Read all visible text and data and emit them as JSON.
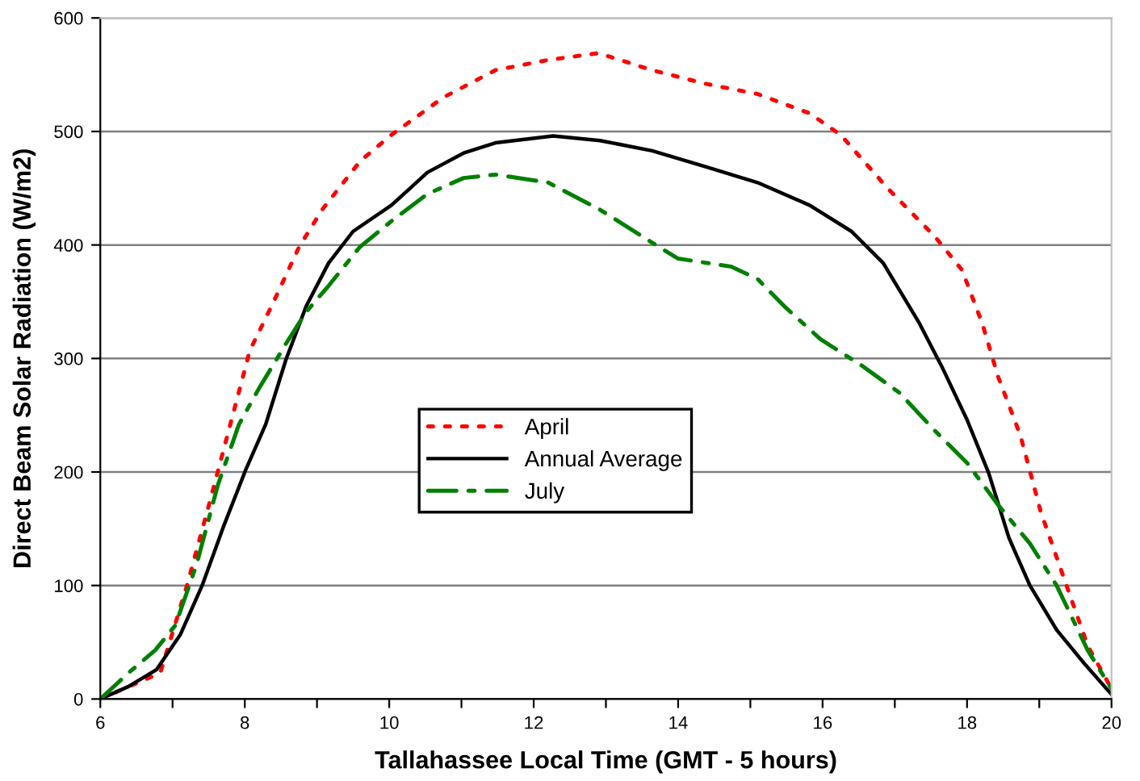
{
  "chart_data": {
    "type": "line",
    "xlabel": "Tallahassee Local Time (GMT - 5 hours)",
    "ylabel": "Direct Beam Solar Radiation (W/m2)",
    "xlim": [
      6,
      20
    ],
    "xticks": [
      6,
      {
        "value": 7,
        "label": null
      },
      8,
      {
        "value": 9,
        "label": null
      },
      10,
      {
        "value": 11,
        "label": null
      },
      12,
      {
        "value": 13,
        "label": null
      },
      14,
      {
        "value": 15,
        "label": null
      },
      16,
      {
        "value": 17,
        "label": null
      },
      18,
      {
        "value": 19,
        "label": null
      },
      20
    ],
    "ylim": [
      0,
      600
    ],
    "yticks": [
      0,
      100,
      200,
      300,
      400,
      500,
      600
    ],
    "grid": "y",
    "legend": "center",
    "marker": "none",
    "series": [
      {
        "name": "April",
        "color": "#ff0000",
        "line_style": "dotted",
        "x": [
          6,
          6.83,
          7.2,
          7.5,
          7.8,
          8.07,
          8.4,
          8.75,
          9.07,
          9.6,
          10.03,
          10.75,
          11.47,
          12.2,
          12.9,
          13.64,
          14.38,
          15.1,
          15.82,
          16.25,
          16.9,
          17.56,
          17.93,
          18.21,
          18.43,
          18.74,
          19.02,
          19.3,
          19.67,
          20
        ],
        "values": [
          0,
          23,
          100,
          170,
          242,
          307,
          350,
          398,
          431,
          474,
          497,
          530,
          554,
          563,
          569,
          554,
          542,
          533,
          516,
          497,
          450,
          407,
          378,
          331,
          284,
          232,
          165,
          114,
          47,
          9
        ]
      },
      {
        "name": "Annual Average",
        "color": "#000000",
        "line_style": "solid",
        "x": [
          6,
          6.39,
          6.78,
          7.11,
          7.41,
          7.7,
          8.02,
          8.29,
          8.57,
          8.85,
          9.16,
          9.5,
          10.03,
          10.53,
          11.03,
          11.47,
          12.27,
          12.92,
          13.64,
          14.38,
          15.1,
          15.82,
          16.4,
          16.84,
          17.34,
          17.65,
          18.0,
          18.3,
          18.58,
          18.87,
          19.24,
          19.6,
          20
        ],
        "values": [
          0,
          11,
          26,
          57,
          100,
          151,
          203,
          242,
          299,
          346,
          384,
          412,
          435,
          464,
          481,
          490,
          496,
          492,
          483,
          469,
          455,
          435,
          412,
          384,
          331,
          293,
          246,
          199,
          142,
          100,
          61,
          33,
          4
        ]
      },
      {
        "name": "July",
        "color": "#008000",
        "line_style": "dashed",
        "x": [
          6,
          6.39,
          6.76,
          7.04,
          7.33,
          7.63,
          7.92,
          8.2,
          8.57,
          8.85,
          9.16,
          9.59,
          10.03,
          10.53,
          11.03,
          11.47,
          12.2,
          12.92,
          13.64,
          14.0,
          14.73,
          15.1,
          15.47,
          15.97,
          16.56,
          17.06,
          17.56,
          18.0,
          18.43,
          18.87,
          19.24,
          19.67,
          20
        ],
        "values": [
          0,
          23,
          43,
          65,
          118,
          189,
          242,
          274,
          313,
          341,
          364,
          398,
          421,
          445,
          459,
          462,
          455,
          431,
          402,
          388,
          381,
          370,
          346,
          317,
          293,
          270,
          236,
          208,
          171,
          137,
          100,
          43,
          9
        ]
      }
    ]
  }
}
